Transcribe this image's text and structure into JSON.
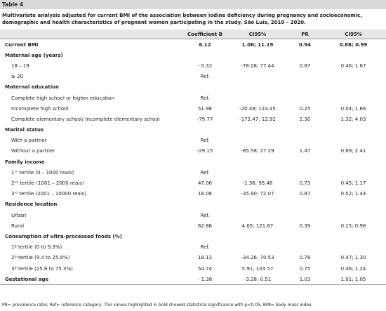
{
  "table_label": "Table 4",
  "caption": "Multivariate analysis adjusted for current BMI of the association between iodine deficiency during pregnancy and socioeconomic, demographic and health characteristics of pregnant women participating in the study, São Luís, 2019 – 2020.",
  "table": {
    "header": [
      "Coefficient B",
      "CI95%",
      "PR",
      "CI95%"
    ],
    "rows": [
      [
        "Current BMI",
        "6.12",
        "1.06; 11.19",
        "0.94",
        "0.88; 0.99"
      ],
      [
        "Maternal age (years)"
      ],
      [
        "18 – 19",
        "- 0.32",
        "-78.08; 77.44",
        "0.87",
        "0.46; 1.67"
      ],
      [
        "≥ 20",
        "Ref."
      ],
      [
        "Maternal education"
      ],
      [
        "Complete high school or higher education",
        "Ref."
      ],
      [
        "Incomplete high school",
        "51.98",
        "-20.49; 124.45",
        "0.25",
        "0.04; 1.66"
      ],
      [
        "Complete elementary school/ Incomplete elementary school",
        "-79.77",
        "-172.47; 12.92",
        "2.30",
        "1.32; 4.03"
      ],
      [
        "Marital status"
      ],
      [
        "With a partner",
        "Ref."
      ],
      [
        "Without a partner",
        "-29.15",
        "-85.58; 27.29",
        "1.47",
        "0.89; 2.41"
      ],
      [
        "Family income"
      ],
      [
        "1ˢᵗ tertile (0 – 1000 reais)",
        "Ref."
      ],
      [
        "2ⁿᵈ tertile (1001 – 2000 reais)",
        "47.06",
        "-1.36; 95.48",
        "0.73",
        "0.45; 1.17"
      ],
      [
        "3ʳᵈ tertile (2001 – 10000 reais)",
        "18.08",
        "-35.90; 72.07",
        "0.87",
        "0.52; 1.44"
      ],
      [
        "Residence location"
      ],
      [
        "Urban",
        "Ref."
      ],
      [
        "Rural",
        "62.86",
        "4.05; 121.67",
        "0.39",
        "0.15; 0.96"
      ],
      [
        "Consumption of ultra-processed foods (%)"
      ],
      [
        "1º tertile (0 to 9.3%)",
        "Ref."
      ],
      [
        "2º tertile (9.4 to 25.8%)",
        "18.13",
        "-34.26; 70.53",
        "0.78",
        "0.47; 1.30"
      ],
      [
        "3º tertile (25.8 to 75.3%)",
        "54.74",
        "5.91; 103.57",
        "0.75",
        "0.46; 1.24"
      ],
      [
        "Gestational age",
        "- 1.38",
        "-3.28; 0.51",
        "1.03",
        "1.01; 1.05"
      ]
    ]
  },
  "footnote": "PR= prevalence ratio; Ref= reference category; The values highlighted in bold showed statistical significance with p<0.05; BMI= body mass index."
}
